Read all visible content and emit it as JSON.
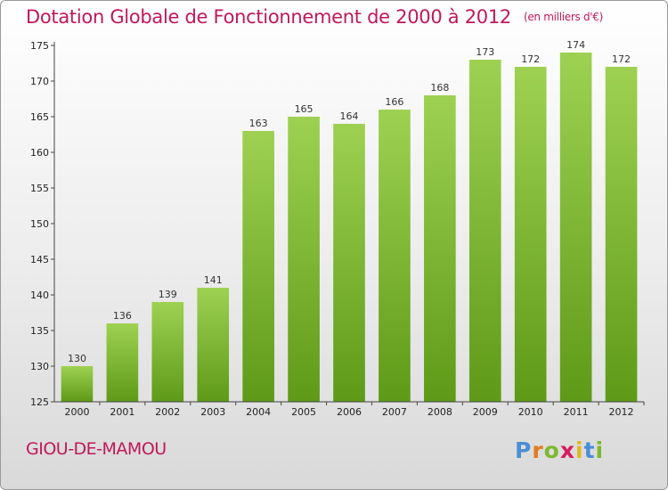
{
  "header": {
    "title": "Dotation Globale de Fonctionnement de 2000 à 2012",
    "unit": "(en milliers d'€)"
  },
  "footer": {
    "commune": "GIOU-DE-MAMOU",
    "logo_letters": [
      "P",
      "r",
      "o",
      "x",
      "i",
      "t",
      "i"
    ]
  },
  "colors": {
    "title": "#c0185a",
    "bar_top": "#9ed152",
    "bar_bottom": "#5e9a17",
    "logo": [
      "#4a8fd6",
      "#e27b1f",
      "#7cb82f",
      "#d61b5f",
      "#e2b81f",
      "#4a8fd6",
      "#7cb82f"
    ]
  },
  "chart_data": {
    "type": "bar",
    "title": "Dotation Globale de Fonctionnement de 2000 à 2012",
    "subtitle": "(en milliers d'€)",
    "categories": [
      "2000",
      "2001",
      "2002",
      "2003",
      "2004",
      "2005",
      "2006",
      "2007",
      "2008",
      "2009",
      "2010",
      "2011",
      "2012"
    ],
    "values": [
      130,
      136,
      139,
      141,
      163,
      165,
      164,
      166,
      168,
      173,
      172,
      174,
      172
    ],
    "ylim": [
      125,
      175
    ],
    "yticks": [
      125,
      130,
      135,
      140,
      145,
      150,
      155,
      160,
      165,
      170,
      175
    ],
    "grid": false,
    "xlabel": "",
    "ylabel": ""
  }
}
